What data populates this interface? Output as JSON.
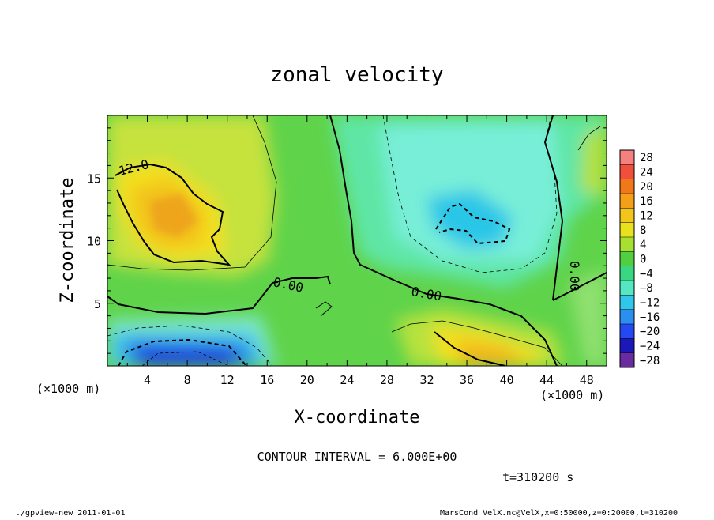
{
  "chart_data": {
    "type": "heatmap",
    "title": "zonal velocity",
    "xlabel": "X-coordinate",
    "ylabel": "Z-coordinate",
    "x_unit_note": "(×1000 m)",
    "y_unit_note": "(×1000 m)",
    "xlim": [
      0,
      50
    ],
    "ylim": [
      0,
      20
    ],
    "x_ticks": [
      4,
      8,
      12,
      16,
      20,
      24,
      28,
      32,
      36,
      40,
      44,
      48
    ],
    "y_ticks": [
      5,
      10,
      15
    ],
    "colorbar_levels": [
      28,
      24,
      20,
      16,
      12,
      8,
      4,
      0,
      -4,
      -8,
      -12,
      -16,
      -20,
      -24,
      -28
    ],
    "colorbar_labels": [
      "28",
      "24",
      "20",
      "16",
      "12",
      "8",
      "4",
      "0",
      "−4",
      "−8",
      "−12",
      "−16",
      "−20",
      "−24",
      "−28"
    ],
    "contour_labels": [
      "12.0",
      "0.00",
      "0.00",
      "0.00"
    ],
    "contour_interval_text": "CONTOUR INTERVAL = 6.000E+00",
    "time_text": "t=310200 s",
    "features": [
      {
        "x": 7,
        "z": 12,
        "value": 14
      },
      {
        "x": 8,
        "z": 1,
        "value": -22
      },
      {
        "x": 38,
        "z": 1.2,
        "value": 14
      },
      {
        "x": 38,
        "z": 11,
        "value": -10
      }
    ]
  },
  "footer": {
    "left": "./gpview-new  2011-01-01",
    "right": "MarsCond_VelX.nc@VelX,x=0:50000,z=0:20000,t=310200"
  }
}
